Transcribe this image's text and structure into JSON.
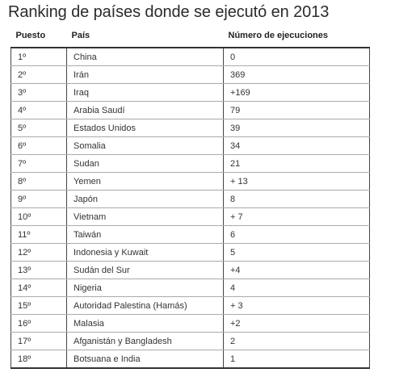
{
  "title": "Ranking de países donde se ejecutó en 2013",
  "table": {
    "headers": [
      "Puesto",
      "País",
      "Número de ejecuciones"
    ],
    "rows": [
      [
        "1º",
        "China",
        "0"
      ],
      [
        "2º",
        "Irán",
        "369"
      ],
      [
        "3º",
        "Iraq",
        "+169"
      ],
      [
        "4º",
        "Arabia Saudí",
        "79"
      ],
      [
        "5º",
        "Estados Unidos",
        "39"
      ],
      [
        "6º",
        "Somalia",
        "34"
      ],
      [
        "7º",
        "Sudan",
        "21"
      ],
      [
        "8º",
        "Yemen",
        "+ 13"
      ],
      [
        "9º",
        "Japón",
        "8"
      ],
      [
        "10º",
        "Vietnam",
        "+ 7"
      ],
      [
        "11º",
        "Taiwán",
        "6"
      ],
      [
        "12º",
        "Indonesia y Kuwait",
        "5"
      ],
      [
        "13º",
        "Sudán del Sur",
        "+4"
      ],
      [
        "14º",
        "Nigeria",
        "4"
      ],
      [
        "15º",
        "Autoridad Palestina (Hamás)",
        "+ 3"
      ],
      [
        "16º",
        "Malasia",
        "+2"
      ],
      [
        "17º",
        "Afganistán y Bangladesh",
        "2"
      ],
      [
        "18º",
        "Botsuana e India",
        "1"
      ]
    ]
  }
}
